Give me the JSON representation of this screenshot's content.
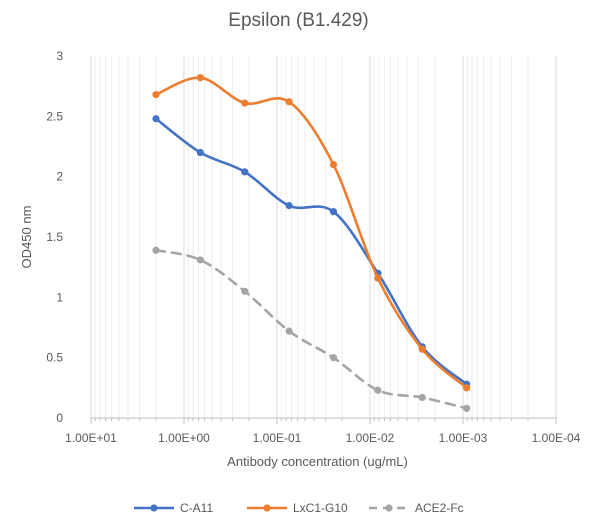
{
  "chart_data": {
    "type": "line",
    "title": "Epsilon (B1.429)",
    "xlabel": "Antibody concentration (ug/mL)",
    "ylabel": "OD450 nm",
    "x_scale": "log",
    "x_reversed": true,
    "xlim": [
      10,
      0.0001
    ],
    "ylim": [
      0,
      3
    ],
    "x_ticks": [
      "1.00E+01",
      "1.00E+00",
      "1.00E-01",
      "1.00E-02",
      "1.00E-03",
      "1.00E-04"
    ],
    "y_ticks": [
      "0",
      "0.5",
      "1",
      "1.5",
      "2",
      "2.5",
      "3"
    ],
    "x": [
      2,
      0.667,
      0.222,
      0.0741,
      0.0247,
      0.00823,
      0.00274,
      0.000914
    ],
    "grid": "vertical",
    "legend_position": "bottom",
    "series": [
      {
        "name": "C-A11",
        "color": "#4472C4",
        "dash": false,
        "values": [
          2.48,
          2.2,
          2.04,
          1.76,
          1.71,
          1.2,
          0.59,
          0.28
        ]
      },
      {
        "name": "LxC1-G10",
        "color": "#ED7D31",
        "dash": false,
        "values": [
          2.68,
          2.82,
          2.61,
          2.62,
          2.1,
          1.16,
          0.57,
          0.25
        ]
      },
      {
        "name": "ACE2-Fc",
        "color": "#A5A5A5",
        "dash": true,
        "values": [
          1.39,
          1.31,
          1.05,
          0.72,
          0.5,
          0.23,
          0.17,
          0.08
        ]
      }
    ]
  }
}
